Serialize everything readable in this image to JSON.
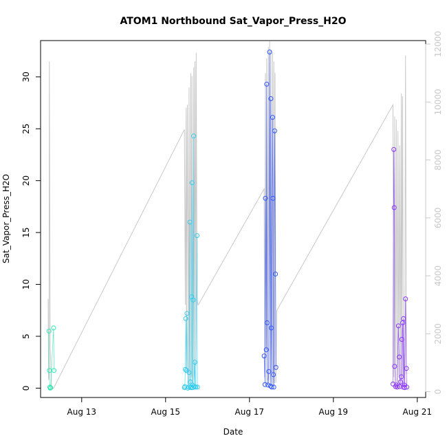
{
  "chart_data": {
    "type": "scatter",
    "title": "ATOM1 Northbound Sat_Vapor_Press_H2O",
    "xlabel": "Date",
    "ylabel": "Sat_Vapor_Press_H2O",
    "y2label": "",
    "grid": false,
    "x_ticks": [
      {
        "label": "Aug 13",
        "day": 13
      },
      {
        "label": "Aug 15",
        "day": 15
      },
      {
        "label": "Aug 17",
        "day": 17
      },
      {
        "label": "Aug 19",
        "day": 19
      },
      {
        "label": "Aug 21",
        "day": 21
      }
    ],
    "y_ticks": [
      0,
      5,
      10,
      15,
      20,
      25,
      30
    ],
    "y2_ticks": [
      0,
      2000,
      4000,
      6000,
      8000,
      10000,
      12000
    ],
    "xlim": [
      12.02,
      21.2
    ],
    "ylim": [
      -0.9,
      33.5
    ],
    "y2lim": [
      -200,
      12120
    ],
    "colors": {
      "line": "#c8c8c8",
      "axis": "#000000",
      "secondary_axis": "#c8c8c8",
      "points_early": "#33e6b3",
      "points_aug15": "#33ccee",
      "points_aug17": "#3355ff",
      "points_aug20": "#8833ff"
    },
    "series": [
      {
        "color_key": "points_early",
        "x": [
          12.22,
          12.23,
          12.24,
          12.25,
          12.26,
          12.33,
          12.34
        ],
        "y": [
          5.5,
          1.7,
          0.1,
          0.0,
          0.05,
          5.8,
          1.7
        ]
      },
      {
        "color_key": "points_aug15",
        "x": [
          15.45,
          15.46,
          15.47,
          15.48,
          15.5,
          15.51,
          15.53,
          15.55,
          15.56,
          15.58,
          15.59,
          15.6,
          15.61,
          15.62,
          15.63,
          15.64,
          15.65,
          15.66,
          15.67,
          15.68,
          15.7,
          15.71,
          15.72,
          15.75,
          15.76
        ],
        "y": [
          0.05,
          0.15,
          1.8,
          6.7,
          1.7,
          7.2,
          0.0,
          0.1,
          1.5,
          16.0,
          0.6,
          0.05,
          0.1,
          8.8,
          19.8,
          0.3,
          0.05,
          8.5,
          24.3,
          0.15,
          2.5,
          0.1,
          0.1,
          14.7,
          0.1
        ]
      },
      {
        "color_key": "points_aug17",
        "x": [
          17.35,
          17.37,
          17.38,
          17.4,
          17.41,
          17.42,
          17.44,
          17.46,
          17.48,
          17.5,
          17.51,
          17.52,
          17.53,
          17.55,
          17.56,
          17.57,
          17.58,
          17.6,
          17.62,
          17.63
        ],
        "y": [
          3.1,
          0.35,
          18.3,
          3.7,
          29.3,
          6.3,
          0.3,
          1.6,
          32.4,
          0.2,
          27.9,
          5.8,
          0.1,
          26.1,
          18.3,
          1.3,
          0.1,
          24.8,
          11.0,
          2.0
        ]
      },
      {
        "color_key": "points_aug20",
        "x": [
          20.42,
          20.44,
          20.45,
          20.46,
          20.48,
          20.5,
          20.52,
          20.55,
          20.57,
          20.58,
          20.6,
          20.62,
          20.63,
          20.65,
          20.66,
          20.67,
          20.69,
          20.7,
          20.72,
          20.74,
          20.75
        ],
        "y": [
          0.4,
          23.0,
          17.4,
          2.1,
          0.15,
          0.3,
          0.1,
          6.0,
          3.0,
          0.15,
          0.6,
          1.1,
          4.7,
          6.3,
          0.1,
          6.7,
          0.3,
          0.05,
          8.6,
          1.9,
          0.1
        ]
      }
    ],
    "line_series": {
      "axis": "secondary",
      "x": [
        12.2,
        12.21,
        12.22,
        12.23,
        12.25,
        12.28,
        12.31,
        12.34,
        15.45,
        15.46,
        15.47,
        15.49,
        15.5,
        15.52,
        15.55,
        15.56,
        15.58,
        15.6,
        15.62,
        15.63,
        15.65,
        15.67,
        15.68,
        15.7,
        15.72,
        15.73,
        15.75,
        15.77,
        15.78,
        17.35,
        17.36,
        17.38,
        17.4,
        17.41,
        17.43,
        17.45,
        17.46,
        17.48,
        17.5,
        17.51,
        17.53,
        17.55,
        17.56,
        17.58,
        17.6,
        17.61,
        17.63,
        17.65,
        20.42,
        20.44,
        20.46,
        20.48,
        20.5,
        20.52,
        20.54,
        20.56,
        20.58,
        20.6,
        20.62,
        20.63,
        20.65,
        20.67,
        20.68,
        20.7,
        20.72,
        20.74
      ],
      "y": [
        3200,
        400,
        500,
        11400,
        1500,
        200,
        100,
        150,
        9050,
        6200,
        3000,
        9800,
        800,
        9900,
        200,
        10500,
        300,
        11000,
        500,
        10900,
        400,
        11200,
        500,
        11400,
        900,
        11700,
        3300,
        3000,
        3000,
        7000,
        500,
        11000,
        300,
        11500,
        400,
        11900,
        300,
        12100,
        400,
        11800,
        300,
        11700,
        200,
        11400,
        300,
        11000,
        300,
        2800,
        9900,
        500,
        9500,
        300,
        9400,
        200,
        9000,
        500,
        8500,
        400,
        10300,
        300,
        10200,
        500,
        1300,
        400,
        11600,
        600
      ]
    }
  }
}
